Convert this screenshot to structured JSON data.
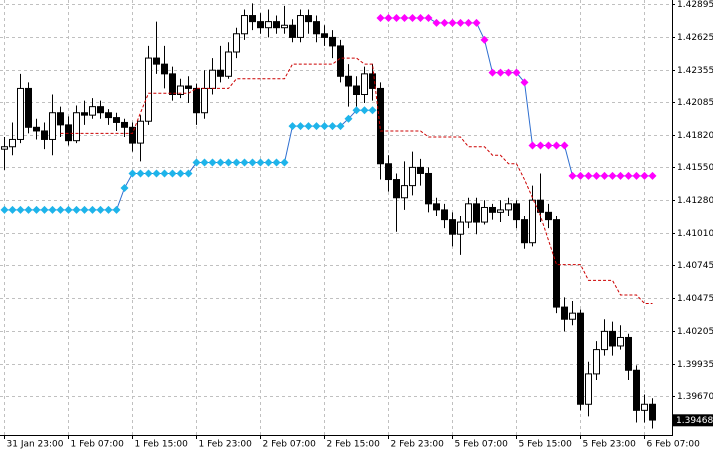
{
  "chart_data": {
    "type": "candlestick",
    "categories": [
      "31 Jan 23:00",
      null,
      null,
      null,
      null,
      null,
      null,
      null,
      "1 Feb 07:00",
      null,
      null,
      null,
      null,
      null,
      null,
      null,
      "1 Feb 15:00",
      null,
      null,
      null,
      null,
      null,
      null,
      null,
      "1 Feb 23:00",
      null,
      null,
      null,
      null,
      null,
      null,
      null,
      "2 Feb 07:00",
      null,
      null,
      null,
      null,
      null,
      null,
      null,
      "2 Feb 15:00",
      null,
      null,
      null,
      null,
      null,
      null,
      null,
      "2 Feb 23:00",
      null,
      null,
      null,
      null,
      null,
      null,
      null,
      "5 Feb 07:00",
      null,
      null,
      null,
      null,
      null,
      null,
      null,
      "5 Feb 15:00",
      null,
      null,
      null,
      null,
      null,
      null,
      null,
      "5 Feb 23:00",
      null,
      null,
      null,
      null,
      null,
      null,
      null,
      "6 Feb 07:00",
      null
    ],
    "open": [
      1.417,
      1.4172,
      1.4178,
      1.422,
      1.4188,
      1.4185,
      1.4178,
      1.42,
      1.419,
      1.4177,
      1.42,
      1.4198,
      1.4205,
      1.42,
      1.4196,
      1.4192,
      1.4188,
      1.4175,
      1.4193,
      1.4245,
      1.424,
      1.4232,
      1.4215,
      1.4222,
      1.422,
      1.42,
      1.422,
      1.4235,
      1.423,
      1.425,
      1.4265,
      1.428,
      1.4275,
      1.427,
      1.4275,
      1.427,
      1.4272,
      1.4262,
      1.428,
      1.4275,
      1.4265,
      1.4262,
      1.4255,
      1.423,
      1.4222,
      1.4215,
      1.4232,
      1.422,
      1.4158,
      1.4145,
      1.413,
      1.414,
      1.4155,
      1.415,
      1.4125,
      1.412,
      1.4112,
      1.41,
      1.411,
      1.4125,
      1.411,
      1.4122,
      1.4118,
      1.412,
      1.4125,
      1.4112,
      1.4093,
      1.4128,
      1.4118,
      1.4112,
      1.404,
      1.403,
      1.4035,
      1.396,
      1.3985,
      1.4005,
      1.402,
      1.4008,
      1.4015,
      1.3988,
      1.3955,
      1.396
    ],
    "high": [
      1.418,
      1.4192,
      1.4232,
      1.4225,
      1.4195,
      1.4192,
      1.4215,
      1.4205,
      1.4197,
      1.4206,
      1.421,
      1.4212,
      1.421,
      1.4203,
      1.42,
      1.4195,
      1.4192,
      1.4198,
      1.4255,
      1.4275,
      1.4255,
      1.4238,
      1.4228,
      1.423,
      1.4224,
      1.4235,
      1.4245,
      1.4255,
      1.4258,
      1.427,
      1.4285,
      1.429,
      1.4282,
      1.4285,
      1.428,
      1.4288,
      1.4277,
      1.4285,
      1.4285,
      1.428,
      1.4272,
      1.4268,
      1.426,
      1.424,
      1.423,
      1.4238,
      1.424,
      1.4225,
      1.4165,
      1.415,
      1.416,
      1.4168,
      1.4162,
      1.4155,
      1.413,
      1.4125,
      1.4118,
      1.4115,
      1.413,
      1.413,
      1.4128,
      1.4125,
      1.4128,
      1.413,
      1.4128,
      1.4115,
      1.414,
      1.415,
      1.4125,
      1.4115,
      1.4048,
      1.4045,
      1.4038,
      1.3995,
      1.4012,
      1.403,
      1.4028,
      1.4025,
      1.4018,
      1.3992,
      1.3968,
      1.3965
    ],
    "low": [
      1.4153,
      1.4165,
      1.4175,
      1.4183,
      1.4178,
      1.417,
      1.4165,
      1.418,
      1.4173,
      1.4175,
      1.419,
      1.4195,
      1.4195,
      1.419,
      1.4185,
      1.418,
      1.4168,
      1.416,
      1.419,
      1.4232,
      1.422,
      1.421,
      1.4212,
      1.4208,
      1.419,
      1.4195,
      1.4215,
      1.4225,
      1.4228,
      1.4245,
      1.426,
      1.4268,
      1.4265,
      1.4262,
      1.4265,
      1.4265,
      1.4258,
      1.4258,
      1.4265,
      1.4258,
      1.4255,
      1.4245,
      1.4225,
      1.4205,
      1.4205,
      1.4208,
      1.421,
      1.4145,
      1.4135,
      1.4102,
      1.412,
      1.4132,
      1.414,
      1.4118,
      1.4115,
      1.4105,
      1.409,
      1.4083,
      1.4105,
      1.41,
      1.4108,
      1.4112,
      1.411,
      1.4115,
      1.4105,
      1.4088,
      1.409,
      1.411,
      1.4105,
      1.4035,
      1.402,
      1.4025,
      1.3955,
      1.395,
      1.398,
      1.4,
      1.4,
      1.4005,
      1.398,
      1.3945,
      1.3945,
      1.394
    ],
    "close": [
      1.4172,
      1.4178,
      1.422,
      1.4188,
      1.4185,
      1.4178,
      1.42,
      1.419,
      1.4177,
      1.42,
      1.4198,
      1.4205,
      1.42,
      1.4196,
      1.4192,
      1.4188,
      1.4175,
      1.4193,
      1.4245,
      1.424,
      1.4232,
      1.4215,
      1.4222,
      1.422,
      1.42,
      1.422,
      1.4235,
      1.423,
      1.425,
      1.4265,
      1.428,
      1.4275,
      1.427,
      1.4275,
      1.427,
      1.4272,
      1.4262,
      1.428,
      1.4275,
      1.4265,
      1.4262,
      1.4255,
      1.423,
      1.4222,
      1.4215,
      1.4232,
      1.422,
      1.4158,
      1.4145,
      1.413,
      1.414,
      1.4155,
      1.415,
      1.4125,
      1.412,
      1.4112,
      1.41,
      1.411,
      1.4125,
      1.411,
      1.4122,
      1.4118,
      1.412,
      1.4125,
      1.4112,
      1.4093,
      1.4128,
      1.4118,
      1.4112,
      1.404,
      1.403,
      1.4035,
      1.396,
      1.3985,
      1.4005,
      1.402,
      1.4008,
      1.4015,
      1.3988,
      1.3955,
      1.396,
      1.3947
    ],
    "up_color": "#ffffff",
    "down_color": "#000000",
    "overlays": [
      {
        "style": "dashed",
        "color": "#cc0000",
        "values": [
          null,
          null,
          null,
          null,
          null,
          null,
          null,
          1.4183,
          1.4183,
          1.4183,
          1.4183,
          1.4183,
          1.4183,
          1.4183,
          1.4183,
          1.4183,
          1.4183,
          1.42,
          1.4216,
          1.4216,
          1.4216,
          1.4216,
          1.4216,
          1.4216,
          1.422,
          1.422,
          1.422,
          1.422,
          1.422,
          1.4228,
          1.4228,
          1.4228,
          1.4228,
          1.4228,
          1.4228,
          1.4228,
          1.424,
          1.424,
          1.424,
          1.424,
          1.424,
          1.424,
          1.4245,
          1.4245,
          1.4245,
          1.424,
          1.424,
          1.4185,
          1.4185,
          1.4185,
          1.4185,
          1.4185,
          1.4185,
          1.418,
          1.418,
          1.418,
          1.418,
          1.418,
          1.4172,
          1.4172,
          1.4172,
          1.4165,
          1.4165,
          1.4158,
          1.4158,
          1.4145,
          1.413,
          1.4115,
          1.4095,
          1.4075,
          1.4075,
          1.4075,
          1.4075,
          1.4062,
          1.4062,
          1.4062,
          1.4062,
          1.405,
          1.405,
          1.405,
          1.4043,
          1.4043
        ]
      },
      {
        "style": "diamonds",
        "color": "#1eb4ea",
        "line_color": "#2f6fd0",
        "values": [
          1.412,
          1.412,
          1.412,
          1.412,
          1.412,
          1.412,
          1.412,
          1.412,
          1.412,
          1.412,
          1.412,
          1.412,
          1.412,
          1.412,
          1.412,
          1.4138,
          1.415,
          1.415,
          1.415,
          1.415,
          1.415,
          1.415,
          1.415,
          1.415,
          1.4159,
          1.4159,
          1.4159,
          1.4159,
          1.4159,
          1.4159,
          1.4159,
          1.4159,
          1.4159,
          1.4159,
          1.4159,
          1.4159,
          1.4189,
          1.4189,
          1.4189,
          1.4189,
          1.4189,
          1.4189,
          1.4189,
          1.4195,
          1.4202,
          1.4202,
          1.4202,
          null,
          null,
          null,
          null,
          null,
          null,
          null,
          null,
          null,
          null,
          null,
          null,
          null,
          null,
          null,
          null,
          null,
          null,
          null,
          null,
          null,
          null,
          null,
          null,
          null,
          null,
          null,
          null,
          null,
          null,
          null,
          null,
          null,
          null,
          null
        ]
      },
      {
        "style": "diamonds",
        "color": "#ff00ff",
        "line_color": "#2f6fd0",
        "values": [
          null,
          null,
          null,
          null,
          null,
          null,
          null,
          null,
          null,
          null,
          null,
          null,
          null,
          null,
          null,
          null,
          null,
          null,
          null,
          null,
          null,
          null,
          null,
          null,
          null,
          null,
          null,
          null,
          null,
          null,
          null,
          null,
          null,
          null,
          null,
          null,
          null,
          null,
          null,
          null,
          null,
          null,
          null,
          null,
          null,
          null,
          null,
          1.4278,
          1.4278,
          1.4278,
          1.4278,
          1.4278,
          1.4278,
          1.4278,
          1.4274,
          1.4274,
          1.4274,
          1.4274,
          1.4274,
          1.4274,
          1.426,
          1.4233,
          1.4233,
          1.4233,
          1.4233,
          1.4225,
          1.4173,
          1.4173,
          1.4173,
          1.4173,
          1.4173,
          1.4148,
          1.4148,
          1.4148,
          1.4148,
          1.4148,
          1.4148,
          1.4148,
          1.4148,
          1.4148,
          1.4148,
          1.4148
        ]
      }
    ],
    "last_price": 1.39468,
    "ylim": [
      1.39347,
      1.42928
    ],
    "yticks": [
      1.42895,
      1.42625,
      1.42355,
      1.42085,
      {
        "value": 1.4182,
        "label": "1.41820"
      },
      {
        "value": 1.4155,
        "label": "1.41550"
      },
      {
        "value": 1.4128,
        "label": "1.41280"
      },
      {
        "value": 1.4101,
        "label": "1.41010"
      },
      1.40745,
      1.40475,
      1.40205,
      1.39935,
      {
        "value": 1.3967,
        "label": "1.39670"
      }
    ],
    "grid": true
  }
}
